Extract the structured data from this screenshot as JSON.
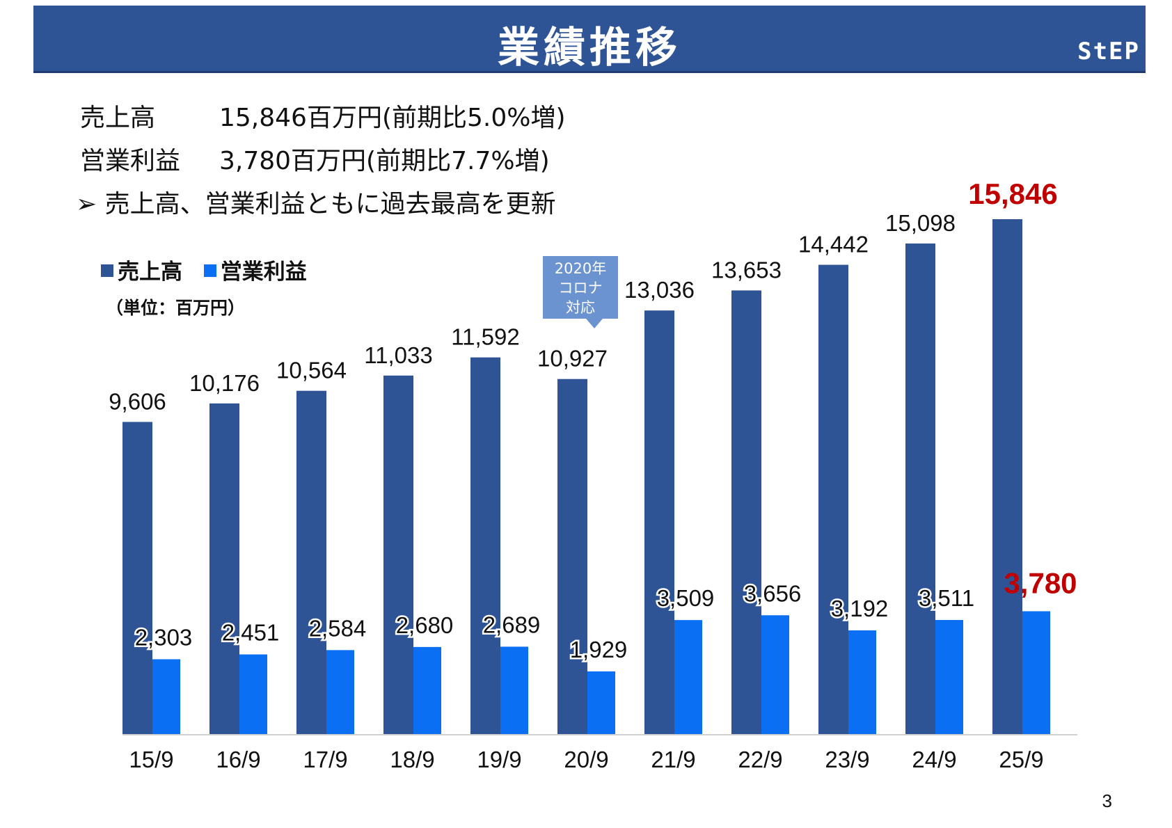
{
  "header": {
    "title": "業績推移",
    "logo_text": "StEP"
  },
  "summary": {
    "rows": [
      {
        "label": "売上高",
        "value": "15,846百万円(前期比5.0%増)"
      },
      {
        "label": "営業利益",
        "value": "3,780百万円(前期比7.7%増)"
      }
    ],
    "note": "➢ 売上高、営業利益ともに過去最高を更新"
  },
  "callout": {
    "line1": "2020年",
    "line2": "コロナ",
    "line3": "対応"
  },
  "page_number": "3",
  "colors": {
    "sales": "#2f5496",
    "profit": "#0a6ff2",
    "highlight": "#c00000"
  },
  "chart_data": {
    "type": "bar",
    "unit_label": "（単位：百万円）",
    "categories": [
      "15/9",
      "16/9",
      "17/9",
      "18/9",
      "19/9",
      "20/9",
      "21/9",
      "22/9",
      "23/9",
      "24/9",
      "25/9"
    ],
    "series": [
      {
        "name": "売上高",
        "values": [
          9606,
          10176,
          10564,
          11033,
          11592,
          10927,
          13036,
          13653,
          14442,
          15098,
          15846
        ],
        "labels": [
          "9,606",
          "10,176",
          "10,564",
          "11,033",
          "11,592",
          "10,927",
          "13,036",
          "13,653",
          "14,442",
          "15,098",
          "15,846"
        ]
      },
      {
        "name": "営業利益",
        "values": [
          2303,
          2451,
          2584,
          2680,
          2689,
          1929,
          3509,
          3656,
          3192,
          3511,
          3780
        ],
        "labels": [
          "2,303",
          "2,451",
          "2,584",
          "2,680",
          "2,689",
          "1,929",
          "3,509",
          "3,656",
          "3,192",
          "3,511",
          "3,780"
        ]
      }
    ],
    "highlight_category": "25/9",
    "legend": "top-left",
    "grid": false
  }
}
